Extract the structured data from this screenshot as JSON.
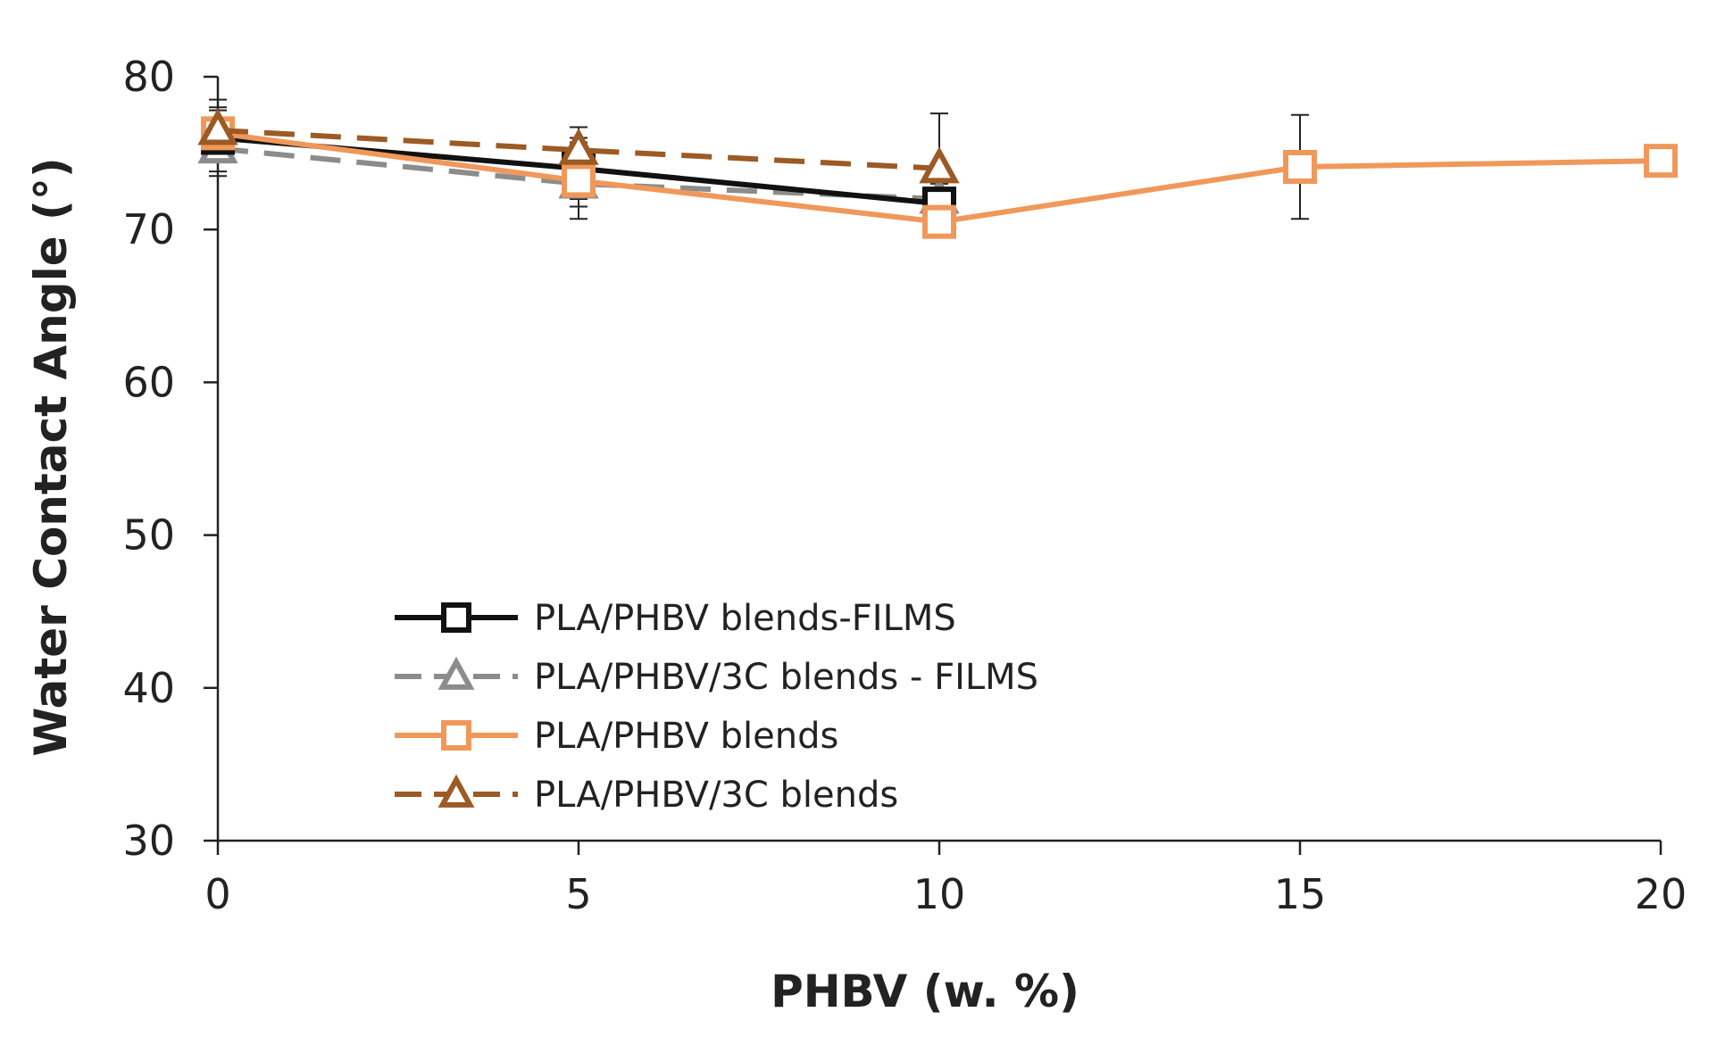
{
  "chart_data": {
    "type": "line",
    "xlabel": "PHBV (w. %)",
    "ylabel": "Water Contact Angle (°)",
    "xlim": [
      0,
      20
    ],
    "ylim": [
      30,
      80
    ],
    "xticks": [
      0,
      5,
      10,
      15,
      20
    ],
    "yticks": [
      30,
      40,
      50,
      60,
      70,
      80
    ],
    "xtick_labels": [
      "0",
      "5",
      "10",
      "15",
      "20"
    ],
    "ytick_labels": [
      "30",
      "40",
      "50",
      "60",
      "70",
      "80"
    ],
    "grid": false,
    "legend_position": "lower-left",
    "series": [
      {
        "name": "PLA/PHBV blends-FILMS",
        "color": "#111111",
        "line_style": "solid",
        "marker": "square",
        "x": [
          0,
          5,
          10
        ],
        "y": [
          76.0,
          74.0,
          71.7
        ],
        "error": [
          2.5,
          2.0,
          1.5
        ]
      },
      {
        "name": "PLA/PHBV/3C blends - FILMS",
        "color": "#8c8c8c",
        "line_style": "dashed",
        "marker": "triangle",
        "x": [
          0,
          5,
          10
        ],
        "y": [
          75.3,
          73.0,
          72.0
        ],
        "error": [
          1.5,
          1.5,
          1.0
        ]
      },
      {
        "name": "PLA/PHBV blends",
        "color": "#f0985a",
        "line_style": "solid",
        "marker": "square",
        "x": [
          0,
          5,
          10,
          15,
          20
        ],
        "y": [
          76.3,
          73.2,
          70.5,
          74.1,
          74.5
        ],
        "error": [
          1.5,
          2.5,
          1.0,
          3.4,
          0.8
        ]
      },
      {
        "name": "PLA/PHBV/3C blends",
        "color": "#9c5a24",
        "line_style": "dashed",
        "marker": "triangle",
        "x": [
          0,
          5,
          10
        ],
        "y": [
          76.5,
          75.2,
          74.0
        ],
        "error": [
          1.5,
          1.5,
          3.6
        ]
      }
    ]
  }
}
